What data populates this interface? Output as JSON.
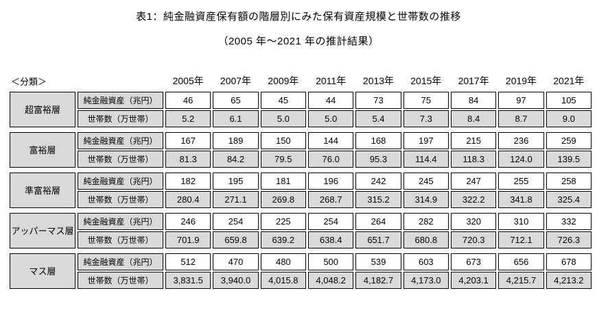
{
  "page": {
    "title": "表1：純金融資産保有額の階層別にみた保有資産規模と世帯数の推移",
    "subtitle": "（2005 年～2021 年の推計結果）"
  },
  "table": {
    "corner_label": "＜分類＞",
    "years": [
      "2005年",
      "2007年",
      "2009年",
      "2011年",
      "2013年",
      "2015年",
      "2017年",
      "2019年",
      "2021年"
    ],
    "row_labels": {
      "assets": "純金融資産（兆円）",
      "households": "世帯数（万世帯）"
    },
    "groups": [
      {
        "category": "超富裕層",
        "assets": [
          "46",
          "65",
          "45",
          "44",
          "73",
          "75",
          "84",
          "97",
          "105"
        ],
        "households": [
          "5.2",
          "6.1",
          "5.0",
          "5.0",
          "5.4",
          "7.3",
          "8.4",
          "8.7",
          "9.0"
        ]
      },
      {
        "category": "富裕層",
        "assets": [
          "167",
          "189",
          "150",
          "144",
          "168",
          "197",
          "215",
          "236",
          "259"
        ],
        "households": [
          "81.3",
          "84.2",
          "79.5",
          "76.0",
          "95.3",
          "114.4",
          "118.3",
          "124.0",
          "139.5"
        ]
      },
      {
        "category": "準富裕層",
        "assets": [
          "182",
          "195",
          "181",
          "196",
          "242",
          "245",
          "247",
          "255",
          "258"
        ],
        "households": [
          "280.4",
          "271.1",
          "269.8",
          "268.7",
          "315.2",
          "314.9",
          "322.2",
          "341.8",
          "325.4"
        ]
      },
      {
        "category": "アッパーマス層",
        "assets": [
          "246",
          "254",
          "225",
          "254",
          "264",
          "282",
          "320",
          "310",
          "332"
        ],
        "households": [
          "701.9",
          "659.8",
          "639.2",
          "638.4",
          "651.7",
          "680.8",
          "720.3",
          "712.1",
          "726.3"
        ]
      },
      {
        "category": "マス層",
        "assets": [
          "512",
          "470",
          "480",
          "500",
          "539",
          "603",
          "673",
          "656",
          "678"
        ],
        "households": [
          "3,831.5",
          "3,940.0",
          "4,015.8",
          "4,048.2",
          "4,182.7",
          "4,173.0",
          "4,203.1",
          "4,215.7",
          "4,213.2"
        ]
      }
    ],
    "colors": {
      "cell_gray": "#d9d9d9",
      "border": "#000000"
    }
  }
}
